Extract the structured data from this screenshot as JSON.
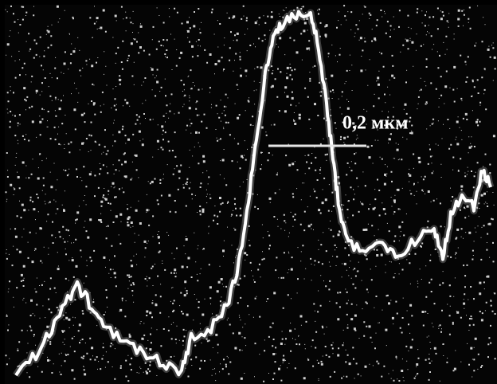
{
  "scale_label": "0,2 мкм"
}
